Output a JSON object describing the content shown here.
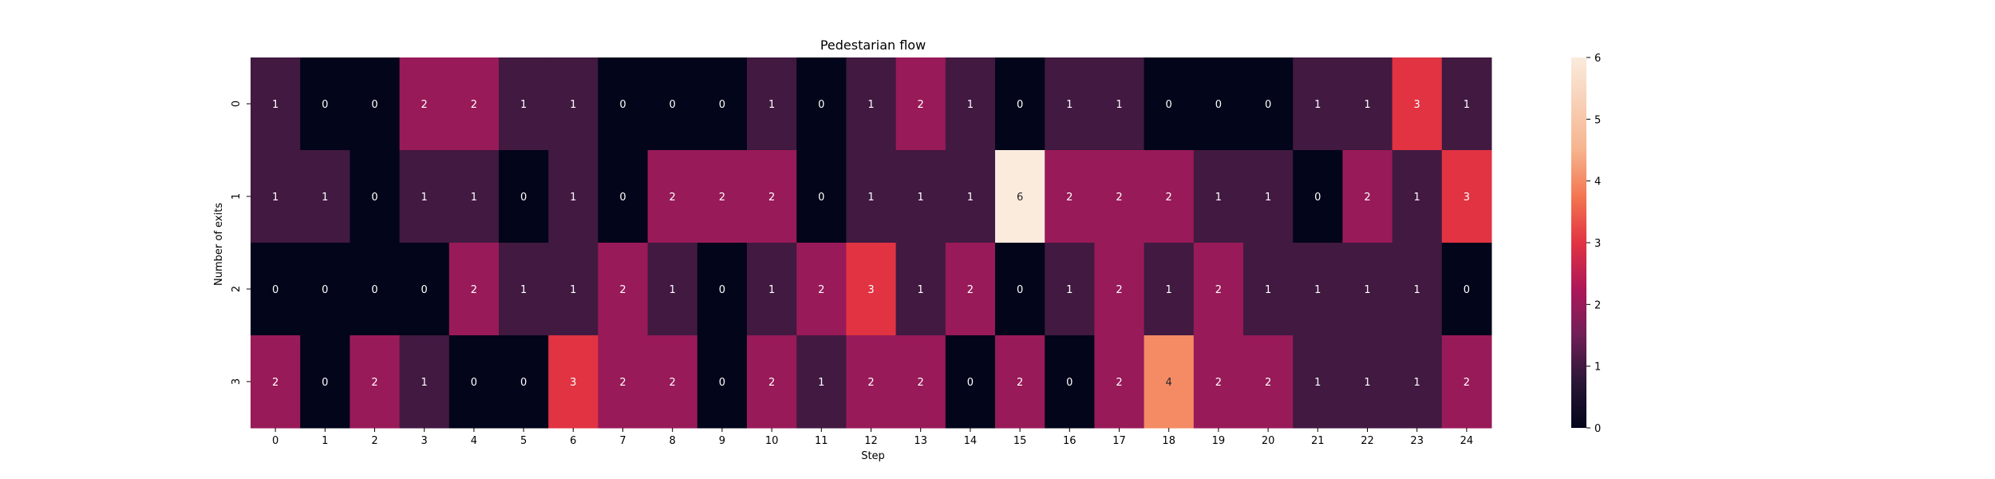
{
  "chart_data": {
    "type": "heatmap",
    "title": "Pedestarian flow",
    "xlabel": "Step",
    "ylabel": "Number of exits",
    "x_categories": [
      "0",
      "1",
      "2",
      "3",
      "4",
      "5",
      "6",
      "7",
      "8",
      "9",
      "10",
      "11",
      "12",
      "13",
      "14",
      "15",
      "16",
      "17",
      "18",
      "19",
      "20",
      "21",
      "22",
      "23",
      "24"
    ],
    "y_categories": [
      "0",
      "1",
      "2",
      "3"
    ],
    "values": [
      [
        1,
        0,
        0,
        2,
        2,
        1,
        1,
        0,
        0,
        0,
        1,
        0,
        1,
        2,
        1,
        0,
        1,
        1,
        0,
        0,
        0,
        1,
        1,
        3,
        1
      ],
      [
        1,
        1,
        0,
        1,
        1,
        0,
        1,
        0,
        2,
        2,
        2,
        0,
        1,
        1,
        1,
        6,
        2,
        2,
        2,
        1,
        1,
        0,
        2,
        1,
        3
      ],
      [
        0,
        0,
        0,
        0,
        2,
        1,
        1,
        2,
        1,
        0,
        1,
        2,
        3,
        1,
        2,
        0,
        1,
        2,
        1,
        2,
        1,
        1,
        1,
        1,
        0
      ],
      [
        2,
        0,
        2,
        1,
        0,
        0,
        3,
        2,
        2,
        0,
        2,
        1,
        2,
        2,
        0,
        2,
        0,
        2,
        4,
        2,
        2,
        1,
        1,
        1,
        2
      ]
    ],
    "colorbar": {
      "min": 0,
      "max": 6,
      "ticks": [
        "0",
        "1",
        "2",
        "3",
        "4",
        "5",
        "6"
      ]
    },
    "colormap": "rocket",
    "annotations": true
  }
}
